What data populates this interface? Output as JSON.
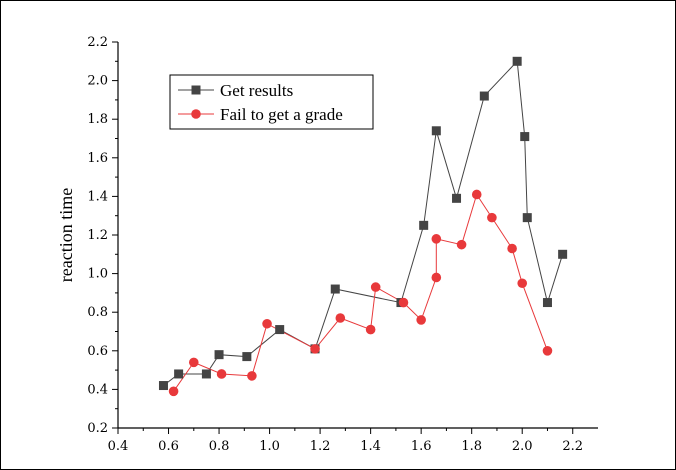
{
  "chart_data": {
    "type": "line",
    "title": "",
    "xlabel": "",
    "ylabel": "reaction time",
    "xlim": [
      0.4,
      2.3
    ],
    "ylim": [
      0.2,
      2.2
    ],
    "xticks": [
      "0.4",
      "0.6",
      "0.8",
      "1.0",
      "1.2",
      "1.4",
      "1.6",
      "1.8",
      "2.0",
      "2.2"
    ],
    "yticks": [
      "0.2",
      "0.4",
      "0.6",
      "0.8",
      "1.0",
      "1.2",
      "1.4",
      "1.6",
      "1.8",
      "2.0",
      "2.2"
    ],
    "grid": false,
    "legend_position": "top-left",
    "series": [
      {
        "name": "Get results",
        "color": "#444444",
        "marker": "square",
        "x": [
          0.58,
          0.64,
          0.75,
          0.8,
          0.91,
          1.04,
          1.18,
          1.26,
          1.52,
          1.61,
          1.66,
          1.74,
          1.85,
          1.98,
          2.01,
          2.02,
          2.1,
          2.16
        ],
        "y": [
          0.42,
          0.48,
          0.48,
          0.58,
          0.57,
          0.71,
          0.61,
          0.92,
          0.85,
          1.25,
          1.74,
          1.39,
          1.92,
          2.1,
          1.71,
          1.29,
          0.85,
          1.1
        ]
      },
      {
        "name": "Fail to get a grade",
        "color": "#e8393b",
        "marker": "circle",
        "x": [
          0.62,
          0.7,
          0.81,
          0.93,
          0.99,
          1.18,
          1.28,
          1.4,
          1.42,
          1.53,
          1.6,
          1.66,
          1.66,
          1.76,
          1.82,
          1.88,
          1.96,
          2.0,
          2.1
        ],
        "y": [
          0.39,
          0.54,
          0.48,
          0.47,
          0.74,
          0.61,
          0.77,
          0.71,
          0.93,
          0.85,
          0.76,
          0.98,
          1.18,
          1.15,
          1.41,
          1.29,
          1.13,
          0.95,
          0.6
        ]
      }
    ]
  }
}
